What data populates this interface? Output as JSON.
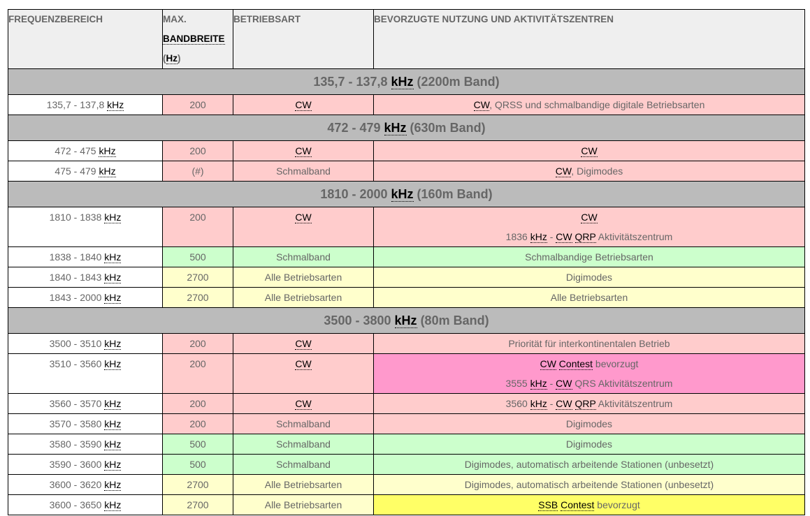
{
  "header": {
    "col1": "FREQUENZBEREICH",
    "col2_line1": "MAX.",
    "col2_line2": "BANDBREITE",
    "col2_line3_pre": "(",
    "col2_line3_abbr": "Hz",
    "col2_line3_post": ")",
    "col3": "BETRIEBSART",
    "col4": "BEVORZUGTE NUTZUNG UND AKTIVITÄTSZENTREN"
  },
  "unit": "kHz",
  "bands": [
    {
      "range": "135,7 - 137,8",
      "name": "(2200m Band)"
    },
    {
      "range": "472 - 479",
      "name": "(630m Band)"
    },
    {
      "range": "1810 - 2000",
      "name": "(160m Band)"
    },
    {
      "range": "3500 - 3800",
      "name": "(80m Band)"
    }
  ],
  "rows": [
    {
      "freq": "135,7 - 137,8",
      "bw": "200",
      "mode": "CW",
      "use_abbr": "CW",
      "use": ", QRSS und schmalbandige digitale Betriebsarten"
    },
    {
      "freq": "472 - 475",
      "bw": "200",
      "mode": "CW",
      "use_abbr": "CW",
      "use": ""
    },
    {
      "freq": "475 - 479",
      "bw": "(#)",
      "mode": "Schmalband",
      "use_abbr": "CW",
      "use": ", Digimodes"
    },
    {
      "freq": "1810 - 1838",
      "bw": "200",
      "mode": "CW",
      "use_abbr": "CW",
      "use_line2_num": "1836",
      "use_line2_sep": " - ",
      "use_line2_a": "CW",
      "use_line2_b": "QRP",
      "use_line2_rest": " Aktivitätszentrum"
    },
    {
      "freq": "1838 - 1840",
      "bw": "500",
      "mode": "Schmalband",
      "use": "Schmalbandige Betriebsarten"
    },
    {
      "freq": "1840 - 1843",
      "bw": "2700",
      "mode": "Alle Betriebsarten",
      "use": "Digimodes"
    },
    {
      "freq": "1843 - 2000",
      "bw": "2700",
      "mode": "Alle Betriebsarten",
      "use": "Alle Betriebsarten"
    },
    {
      "freq": "3500 - 3510",
      "bw": "200",
      "mode": "CW",
      "use": "Priorität für interkontinentalen Betrieb"
    },
    {
      "freq": "3510 - 3560",
      "bw": "200",
      "mode": "CW",
      "use_a": "CW",
      "use_b": "Contest",
      "use_rest": " bevorzugt",
      "use_line2_num": "3555",
      "use_line2_sep": " - ",
      "use_line2_a": "CW",
      "use_line2_rest": " QRS Aktivitätszentrum"
    },
    {
      "freq": "3560 - 3570",
      "bw": "200",
      "mode": "CW",
      "use_num": "3560",
      "use_sep": " - ",
      "use_a": "CW",
      "use_b": "QRP",
      "use_rest": " Aktivitätszentrum"
    },
    {
      "freq": "3570 - 3580",
      "bw": "200",
      "mode": "Schmalband",
      "use": "Digimodes"
    },
    {
      "freq": "3580 - 3590",
      "bw": "500",
      "mode": "Schmalband",
      "use": "Digimodes"
    },
    {
      "freq": "3590 - 3600",
      "bw": "500",
      "mode": "Schmalband",
      "use": "Digimodes, automatisch arbeitende Stationen (unbesetzt)"
    },
    {
      "freq": "3600 - 3620",
      "bw": "2700",
      "mode": "Alle Betriebsarten",
      "use": "Digimodes, automatisch arbeitende Stationen (unbesetzt)"
    },
    {
      "freq": "3600 - 3650",
      "bw": "2700",
      "mode": "Alle Betriebsarten",
      "use_a": "SSB",
      "use_b": "Contest",
      "use_rest": " bevorzugt"
    }
  ],
  "colors": {
    "header_bg": "#efefef",
    "band_bg": "#bbbbbb",
    "cw_red": "#ffcccc",
    "narrow_green": "#ccffcc",
    "all_lightyellow": "#ffffcc",
    "contest_pink": "#ff99cc",
    "contest_yellow": "#ffff66"
  }
}
